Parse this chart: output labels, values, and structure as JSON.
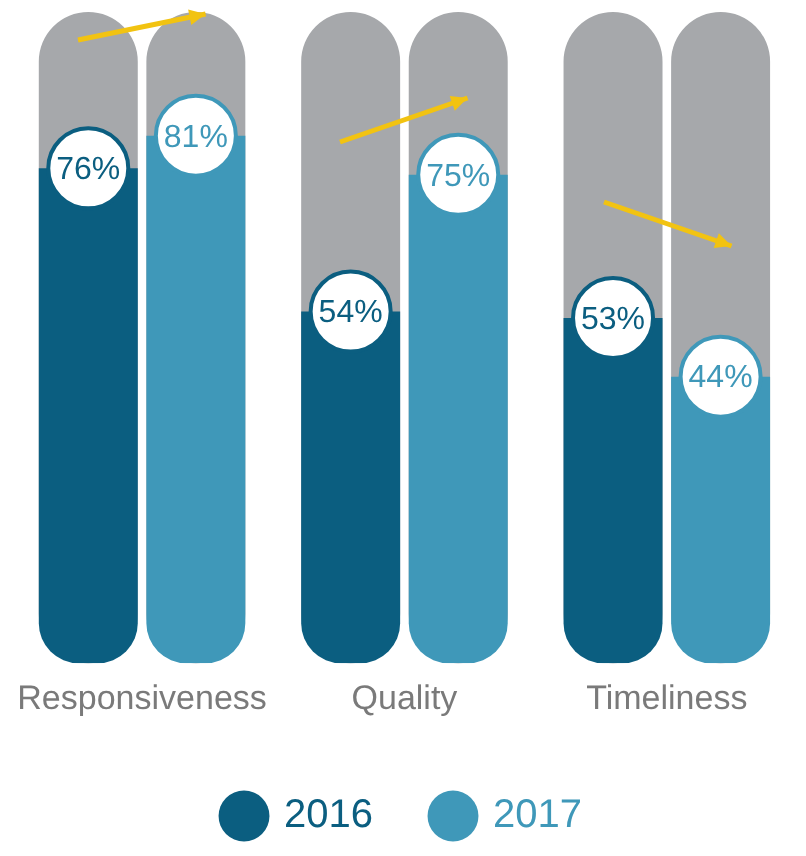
{
  "chart_data": {
    "type": "bar",
    "categories": [
      "Responsiveness",
      "Quality",
      "Timeliness"
    ],
    "series": [
      {
        "name": "2016",
        "color": "#0b5e80",
        "values": [
          76,
          54,
          53
        ],
        "value_labels": [
          "76%",
          "54%",
          "53%"
        ]
      },
      {
        "name": "2017",
        "color": "#3f98b9",
        "values": [
          81,
          75,
          44
        ],
        "value_labels": [
          "81%",
          "75%",
          "44%"
        ]
      }
    ],
    "ylim": [
      0,
      100
    ],
    "tick_labels": "x",
    "grid": false,
    "legend": "bottom"
  }
}
